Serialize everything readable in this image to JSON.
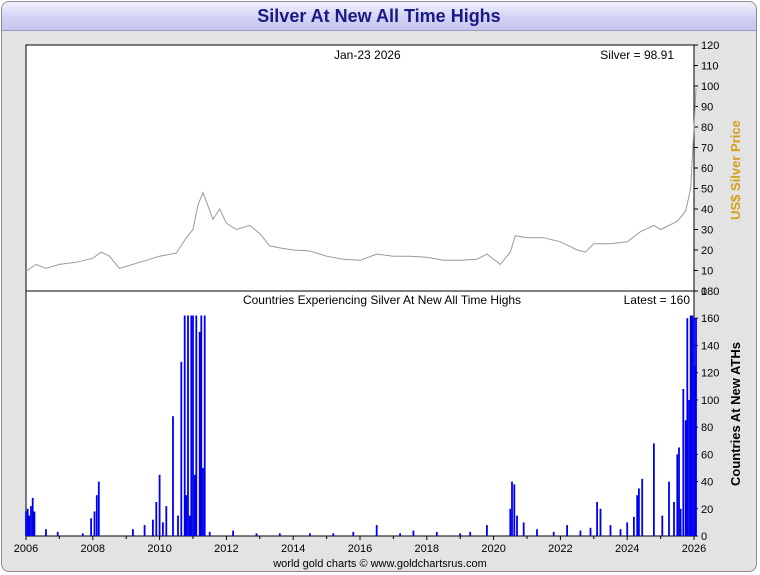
{
  "title": "Silver At New All Time Highs",
  "footer": "world gold charts © www.goldchartsrus.com",
  "colors": {
    "price_line": "#9a9a9a",
    "bars": "#0000ee",
    "price_axis_label": "#d4a017",
    "title": "#1a1a80"
  },
  "chart_data": [
    {
      "type": "line",
      "date_label": "Jan-23  2026",
      "value_label": "Silver = 98.91",
      "ylabel": "US$ Silver Price",
      "ylim": [
        0,
        120
      ],
      "yticks": [
        0,
        10,
        20,
        30,
        40,
        50,
        60,
        70,
        80,
        90,
        100,
        110,
        120
      ],
      "xlim": [
        2006,
        2026
      ],
      "x": [
        2006.0,
        2006.3,
        2006.6,
        2007.0,
        2007.5,
        2008.0,
        2008.25,
        2008.5,
        2008.8,
        2009.0,
        2009.5,
        2010.0,
        2010.5,
        2010.8,
        2011.0,
        2011.15,
        2011.3,
        2011.6,
        2011.8,
        2012.0,
        2012.3,
        2012.7,
        2013.0,
        2013.3,
        2013.6,
        2014.0,
        2014.5,
        2015.0,
        2015.5,
        2016.0,
        2016.5,
        2017.0,
        2017.5,
        2018.0,
        2018.5,
        2019.0,
        2019.5,
        2019.8,
        2020.2,
        2020.5,
        2020.65,
        2021.0,
        2021.5,
        2022.0,
        2022.5,
        2022.75,
        2023.0,
        2023.5,
        2024.0,
        2024.4,
        2024.8,
        2025.0,
        2025.5,
        2025.75,
        2025.9,
        2026.0,
        2026.06
      ],
      "y": [
        9.5,
        13,
        11,
        13,
        14,
        16,
        19,
        17,
        11,
        12,
        14.5,
        17,
        18.5,
        26,
        30,
        42,
        48,
        35,
        40,
        33,
        30,
        32,
        28,
        22,
        21,
        20,
        19.5,
        17,
        15.5,
        15,
        18,
        17,
        17,
        16.5,
        15,
        15,
        15.5,
        18,
        13,
        19,
        27,
        26,
        26,
        24,
        20,
        19,
        23,
        23,
        24,
        29,
        32,
        30,
        34,
        39,
        50,
        80,
        98.91
      ]
    },
    {
      "type": "bar",
      "title": "Countries Experiencing Silver At New All Time Highs",
      "value_label": "Latest = 160",
      "ylabel": "Countries At New ATHs",
      "ylim": [
        0,
        180
      ],
      "yticks": [
        0,
        20,
        40,
        60,
        80,
        100,
        120,
        140,
        160,
        180
      ],
      "xlim": [
        2006,
        2026
      ],
      "xticks": [
        "2006",
        "2008",
        "2010",
        "2012",
        "2014",
        "2016",
        "2018",
        "2020",
        "2022",
        "2024",
        "2026"
      ],
      "x": [
        2006.0,
        2006.05,
        2006.1,
        2006.15,
        2006.2,
        2006.25,
        2006.6,
        2006.95,
        2007.7,
        2007.95,
        2008.05,
        2008.12,
        2008.18,
        2009.2,
        2009.55,
        2009.8,
        2009.9,
        2010.0,
        2010.1,
        2010.2,
        2010.4,
        2010.55,
        2010.65,
        2010.75,
        2010.8,
        2010.85,
        2010.9,
        2010.95,
        2011.0,
        2011.05,
        2011.1,
        2011.2,
        2011.25,
        2011.3,
        2011.35,
        2011.5,
        2012.2,
        2012.9,
        2013.6,
        2014.5,
        2015.2,
        2015.8,
        2016.5,
        2017.2,
        2017.6,
        2018.3,
        2019.0,
        2019.3,
        2019.8,
        2020.5,
        2020.55,
        2020.62,
        2020.7,
        2020.9,
        2021.3,
        2021.8,
        2022.2,
        2022.6,
        2022.9,
        2023.1,
        2023.2,
        2023.5,
        2023.8,
        2024.0,
        2024.2,
        2024.3,
        2024.35,
        2024.45,
        2024.8,
        2025.05,
        2025.25,
        2025.4,
        2025.5,
        2025.55,
        2025.6,
        2025.68,
        2025.75,
        2025.8,
        2025.85,
        2025.9,
        2025.95,
        2026.0,
        2026.03,
        2026.06
      ],
      "y": [
        18,
        20,
        15,
        22,
        28,
        18,
        5,
        3,
        2,
        13,
        18,
        30,
        40,
        5,
        8,
        12,
        25,
        45,
        10,
        22,
        88,
        15,
        128,
        162,
        30,
        162,
        15,
        162,
        162,
        45,
        162,
        150,
        162,
        50,
        162,
        3,
        4,
        2,
        2,
        2,
        2,
        3,
        8,
        2,
        4,
        3,
        2,
        3,
        8,
        20,
        40,
        38,
        15,
        10,
        5,
        3,
        8,
        4,
        6,
        25,
        20,
        8,
        5,
        10,
        14,
        30,
        35,
        42,
        68,
        15,
        40,
        25,
        60,
        65,
        20,
        108,
        85,
        160,
        100,
        162,
        162,
        160,
        125,
        160
      ]
    }
  ]
}
